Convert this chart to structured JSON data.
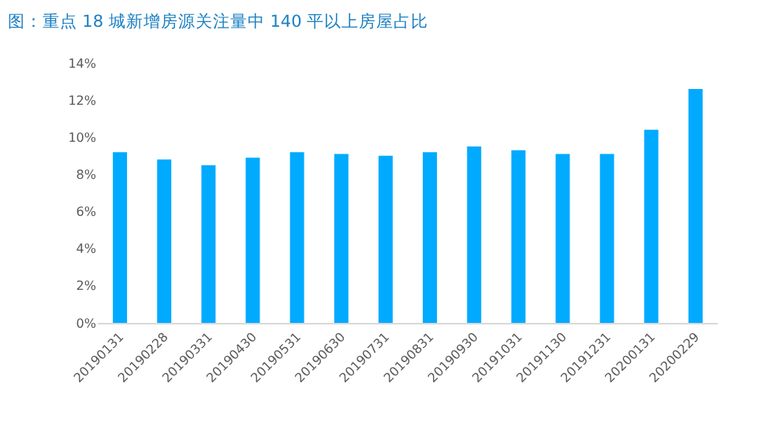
{
  "chart_data": {
    "type": "bar",
    "title": "图：重点 18 城新增房源关注量中 140 平以上房屋占比",
    "categories": [
      "20190131",
      "20190228",
      "20190331",
      "20190430",
      "20190531",
      "20190630",
      "20190731",
      "20190831",
      "20190930",
      "20191031",
      "20191130",
      "20191231",
      "20200131",
      "20200229"
    ],
    "values": [
      9.2,
      8.8,
      8.5,
      8.9,
      9.2,
      9.1,
      9.0,
      9.2,
      9.5,
      9.3,
      9.1,
      9.1,
      10.4,
      12.6
    ],
    "color": "#00aaff",
    "ylim": [
      0,
      14
    ],
    "yticks": [
      {
        "value": 0,
        "label": "0%"
      },
      {
        "value": 2,
        "label": "2%"
      },
      {
        "value": 4,
        "label": "4%"
      },
      {
        "value": 6,
        "label": "6%"
      },
      {
        "value": 8,
        "label": "8%"
      },
      {
        "value": 10,
        "label": "10%"
      },
      {
        "value": 12,
        "label": "12%"
      },
      {
        "value": 14,
        "label": "14%"
      }
    ],
    "grid": false
  }
}
